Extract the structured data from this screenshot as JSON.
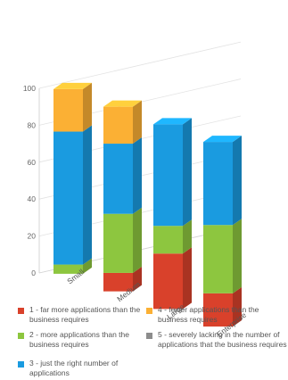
{
  "chart_data": {
    "type": "bar",
    "stacked": true,
    "three_d": true,
    "categories": [
      "Small",
      "Medium",
      "Large",
      "Enterprise"
    ],
    "y_ticks": [
      "0",
      "20",
      "40",
      "60",
      "80",
      "100"
    ],
    "ylim": [
      0,
      100
    ],
    "grid": true,
    "legend_position": "bottom",
    "series": [
      {
        "key": "1",
        "name": "1 - far more applications than the business requires",
        "color": "#d9412b",
        "values": [
          0,
          10,
          30,
          18
        ]
      },
      {
        "key": "2",
        "name": "2 - more applications than the business requires",
        "color": "#8dc63f",
        "values": [
          5,
          32,
          15,
          37
        ]
      },
      {
        "key": "3",
        "name": "3 - just the right number of applications",
        "color": "#1a9be0",
        "values": [
          72,
          38,
          55,
          45
        ]
      },
      {
        "key": "4",
        "name": "4 - fewer applications than the business requires",
        "color": "#fbb034",
        "values": [
          23,
          20,
          0,
          0
        ]
      },
      {
        "key": "5",
        "name": "5 - severely lacking in the number of applications that the business requires",
        "color": "#8c8c8c",
        "values": [
          0,
          0,
          0,
          0
        ]
      }
    ]
  }
}
